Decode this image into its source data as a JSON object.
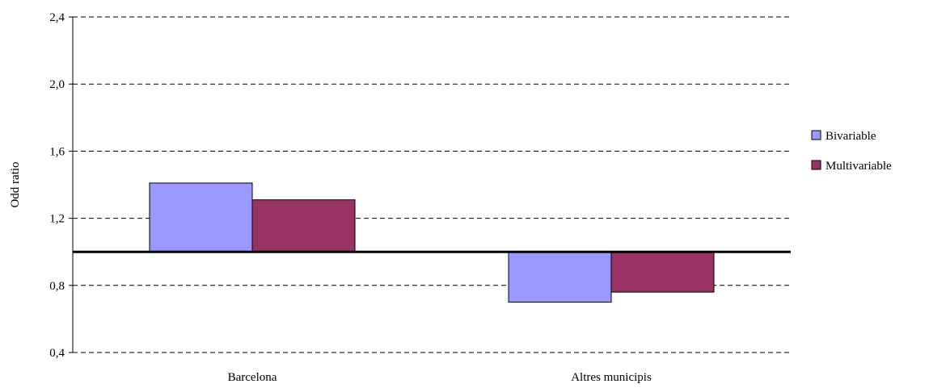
{
  "chart_data": {
    "type": "bar",
    "categories": [
      "Barcelona",
      "Altres municipis"
    ],
    "series": [
      {
        "name": "Bivariable",
        "values": [
          1.41,
          0.7
        ],
        "color": "#9999ff"
      },
      {
        "name": "Multivariable",
        "values": [
          1.31,
          0.76
        ],
        "color": "#993366"
      }
    ],
    "baseline": 1.0,
    "title": "",
    "xlabel": "",
    "ylabel": "Odd ratio",
    "ylim": [
      0.4,
      2.4
    ],
    "yticks": [
      "0,4",
      "0,8",
      "1,2",
      "1,6",
      "2,0",
      "2,4"
    ],
    "grid": true,
    "legend_position": "right"
  }
}
